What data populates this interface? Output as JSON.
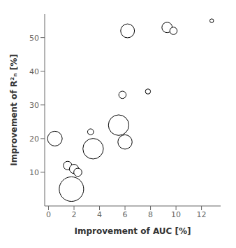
{
  "chart_data": {
    "type": "scatter",
    "x": [
      0.5,
      1.5,
      2.0,
      2.3,
      1.8,
      3.5,
      3.3,
      5.5,
      6.0,
      5.8,
      6.2,
      7.8,
      9.3,
      9.8,
      12.8
    ],
    "values": [
      20,
      12,
      11,
      10,
      5,
      17,
      22,
      24,
      19,
      33,
      52,
      34,
      53,
      52,
      55
    ],
    "sizes": [
      180,
      60,
      70,
      55,
      500,
      350,
      30,
      350,
      170,
      45,
      160,
      22,
      90,
      45,
      12
    ],
    "xlim": [
      -0.3,
      13.5
    ],
    "ylim": [
      0,
      57
    ],
    "xticks": [
      0,
      2,
      4,
      6,
      8,
      10,
      12
    ],
    "yticks": [
      10,
      20,
      30,
      40,
      50
    ],
    "xlabel": "Improvement of AUC [%]",
    "ylabel": "Improvement of R²ₙ [%]",
    "color": "#000000",
    "grid": false
  }
}
